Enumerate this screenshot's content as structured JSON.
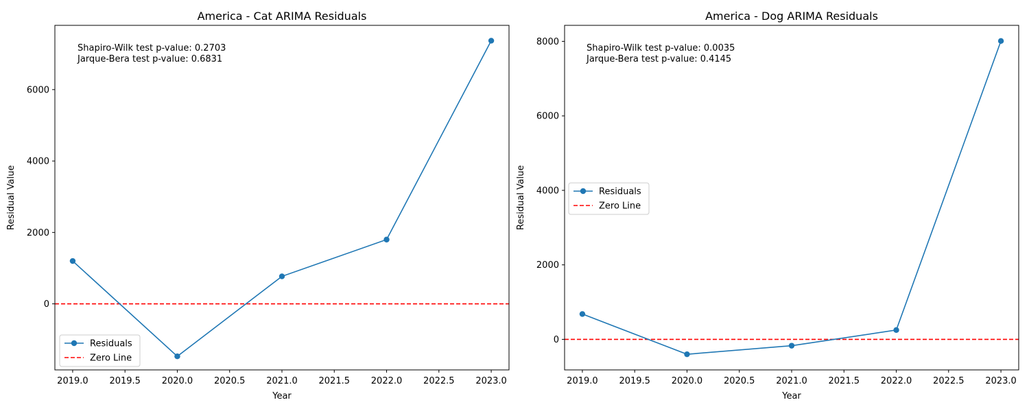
{
  "chart_data": [
    {
      "type": "line",
      "title": "America - Cat ARIMA Residuals",
      "xlabel": "Year",
      "ylabel": "Residual Value",
      "xlim": [
        2018.83,
        2023.17
      ],
      "ylim": [
        -1850,
        7800
      ],
      "xticks": [
        2019.0,
        2019.5,
        2020.0,
        2020.5,
        2021.0,
        2021.5,
        2022.0,
        2022.5,
        2023.0
      ],
      "xtick_labels": [
        "2019.0",
        "2019.5",
        "2020.0",
        "2020.5",
        "2021.0",
        "2021.5",
        "2022.0",
        "2022.5",
        "2023.0"
      ],
      "yticks": [
        0,
        2000,
        4000,
        6000
      ],
      "ytick_labels": [
        "0",
        "2000",
        "4000",
        "6000"
      ],
      "series": [
        {
          "name": "Residuals",
          "color": "#1f77b4",
          "x": [
            2019,
            2020,
            2021,
            2022,
            2023
          ],
          "y": [
            1200,
            -1470,
            770,
            1800,
            7370
          ]
        }
      ],
      "zero_line": {
        "name": "Zero Line",
        "value": 0,
        "color": "#ff0000",
        "style": "dashed"
      },
      "annotations": [
        "Shapiro-Wilk test p-value: 0.2703",
        "Jarque-Bera test p-value: 0.6831"
      ],
      "annotation_placement": "top-left",
      "legend": {
        "placement": "lower-left",
        "entries": [
          "Residuals",
          "Zero Line"
        ]
      },
      "grid": false
    },
    {
      "type": "line",
      "title": "America - Dog ARIMA Residuals",
      "xlabel": "Year",
      "ylabel": "Residual Value",
      "xlim": [
        2018.83,
        2023.17
      ],
      "ylim": [
        -820,
        8430
      ],
      "xticks": [
        2019.0,
        2019.5,
        2020.0,
        2020.5,
        2021.0,
        2021.5,
        2022.0,
        2022.5,
        2023.0
      ],
      "xtick_labels": [
        "2019.0",
        "2019.5",
        "2020.0",
        "2020.5",
        "2021.0",
        "2021.5",
        "2022.0",
        "2022.5",
        "2023.0"
      ],
      "yticks": [
        0,
        2000,
        4000,
        6000,
        8000
      ],
      "ytick_labels": [
        "0",
        "2000",
        "4000",
        "6000",
        "8000"
      ],
      "series": [
        {
          "name": "Residuals",
          "color": "#1f77b4",
          "x": [
            2019,
            2020,
            2021,
            2022,
            2023
          ],
          "y": [
            680,
            -400,
            -170,
            250,
            8010
          ]
        }
      ],
      "zero_line": {
        "name": "Zero Line",
        "value": 0,
        "color": "#ff0000",
        "style": "dashed"
      },
      "annotations": [
        "Shapiro-Wilk test p-value: 0.0035",
        "Jarque-Bera test p-value: 0.4145"
      ],
      "annotation_placement": "top-left",
      "legend": {
        "placement": "center-left",
        "entries": [
          "Residuals",
          "Zero Line"
        ]
      },
      "grid": false
    }
  ]
}
